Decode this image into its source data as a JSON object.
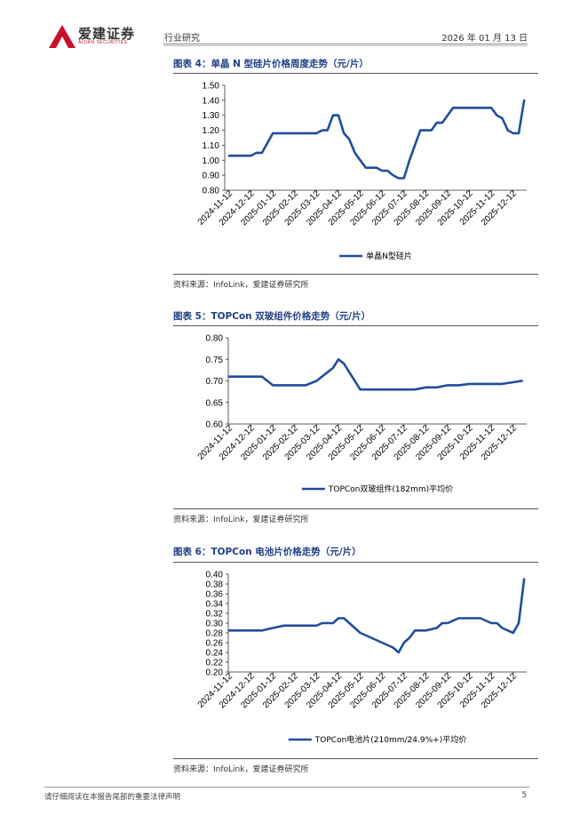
{
  "header": {
    "company": "爱建证券",
    "company_en": "AIJIAN SECURITIES",
    "category": "行业研究",
    "date": "2026 年 01 月 13 日"
  },
  "figures": [
    {
      "title": "图表 4：单晶 N 型硅片价格周度走势（元/片）",
      "source": "资料来源：InfoLink，爱建证券研究所"
    },
    {
      "title": "图表 5：TOPCon 双玻组件价格走势（元/片）",
      "source": "资料来源：InfoLink，爱建证券研究所"
    },
    {
      "title": "图表 6：TOPCon 电池片价格走势（元/片）",
      "source": "资料来源：InfoLink，爱建证券研究所"
    }
  ],
  "chart_data": [
    {
      "type": "line",
      "categories": [
        "2024-11-12",
        "2024-12-12",
        "2025-01-12",
        "2025-02-12",
        "2025-03-12",
        "2025-04-12",
        "2025-05-12",
        "2025-06-12",
        "2025-07-12",
        "2025-08-12",
        "2025-09-12",
        "2025-10-12",
        "2025-11-12",
        "2025-12-12"
      ],
      "yticks": [
        "1.50",
        "1.40",
        "1.30",
        "1.20",
        "1.10",
        "1.00",
        "0.90",
        "0.80"
      ],
      "ylim": [
        0.8,
        1.5
      ],
      "series": [
        {
          "name": "单晶N型硅片",
          "x": [
            0,
            0.5,
            1,
            1.25,
            1.5,
            2,
            2.5,
            3,
            3.5,
            4,
            4.25,
            4.5,
            4.75,
            5,
            5.25,
            5.5,
            5.75,
            6,
            6.25,
            6.5,
            6.75,
            7,
            7.25,
            7.5,
            7.75,
            8,
            8.25,
            8.5,
            8.75,
            9,
            9.25,
            9.5,
            9.75,
            10,
            10.25,
            10.5,
            10.75,
            11,
            11.25,
            11.5,
            11.75,
            12,
            12.25,
            12.5,
            12.75,
            13,
            13.25,
            13.5
          ],
          "values": [
            1.03,
            1.03,
            1.03,
            1.05,
            1.05,
            1.18,
            1.18,
            1.18,
            1.18,
            1.18,
            1.2,
            1.2,
            1.3,
            1.3,
            1.18,
            1.14,
            1.05,
            1.0,
            0.95,
            0.95,
            0.95,
            0.93,
            0.93,
            0.9,
            0.88,
            0.88,
            1.0,
            1.1,
            1.2,
            1.2,
            1.2,
            1.25,
            1.25,
            1.3,
            1.35,
            1.35,
            1.35,
            1.35,
            1.35,
            1.35,
            1.35,
            1.35,
            1.3,
            1.28,
            1.2,
            1.18,
            1.18,
            1.4
          ]
        }
      ]
    },
    {
      "type": "line",
      "categories": [
        "2024-11-12",
        "2024-12-12",
        "2025-01-12",
        "2025-02-12",
        "2025-03-12",
        "2025-04-12",
        "2025-05-12",
        "2025-06-12",
        "2025-07-12",
        "2025-08-12",
        "2025-09-12",
        "2025-10-12",
        "2025-11-12",
        "2025-12-12"
      ],
      "yticks": [
        "0.80",
        "0.75",
        "0.70",
        "0.65",
        "0.60"
      ],
      "ylim": [
        0.6,
        0.8
      ],
      "series": [
        {
          "name": "TOPCon双玻组件(182mm)平均价",
          "x": [
            0,
            0.5,
            1,
            1.5,
            2,
            2.5,
            3,
            3.5,
            4,
            4.5,
            4.75,
            5,
            5.25,
            5.5,
            6,
            6.5,
            7,
            7.5,
            8,
            8.5,
            9,
            9.5,
            10,
            10.5,
            11,
            11.5,
            12,
            12.5,
            13,
            13.4
          ],
          "values": [
            0.71,
            0.71,
            0.71,
            0.71,
            0.69,
            0.69,
            0.69,
            0.69,
            0.7,
            0.72,
            0.73,
            0.75,
            0.74,
            0.72,
            0.68,
            0.68,
            0.68,
            0.68,
            0.68,
            0.68,
            0.685,
            0.685,
            0.69,
            0.69,
            0.693,
            0.693,
            0.693,
            0.693,
            0.697,
            0.7
          ]
        }
      ]
    },
    {
      "type": "line",
      "categories": [
        "2024-11-12",
        "2024-12-12",
        "2025-01-12",
        "2025-02-12",
        "2025-03-12",
        "2025-04-12",
        "2025-05-12",
        "2025-06-12",
        "2025-07-12",
        "2025-08-12",
        "2025-09-12",
        "2025-10-12",
        "2025-11-12",
        "2025-12-12"
      ],
      "yticks": [
        "0.40",
        "0.38",
        "0.36",
        "0.34",
        "0.32",
        "0.30",
        "0.28",
        "0.26",
        "0.24",
        "0.22",
        "0.20"
      ],
      "ylim": [
        0.2,
        0.4
      ],
      "series": [
        {
          "name": "TOPCon电池片(210mm/24.9%+)平均价",
          "x": [
            0,
            0.5,
            1,
            1.5,
            2,
            2.5,
            3,
            3.5,
            4,
            4.25,
            4.5,
            4.75,
            5,
            5.25,
            5.5,
            6,
            6.5,
            7,
            7.5,
            7.75,
            8,
            8.25,
            8.5,
            9,
            9.5,
            9.75,
            10,
            10.5,
            11,
            11.5,
            12,
            12.25,
            12.5,
            12.75,
            13,
            13.25,
            13.5
          ],
          "values": [
            0.285,
            0.285,
            0.285,
            0.285,
            0.29,
            0.295,
            0.295,
            0.295,
            0.295,
            0.3,
            0.3,
            0.3,
            0.31,
            0.31,
            0.3,
            0.28,
            0.27,
            0.26,
            0.25,
            0.24,
            0.26,
            0.27,
            0.285,
            0.285,
            0.29,
            0.3,
            0.3,
            0.31,
            0.31,
            0.31,
            0.3,
            0.3,
            0.29,
            0.285,
            0.28,
            0.3,
            0.39
          ]
        }
      ]
    }
  ],
  "footer": {
    "disclaimer": "请仔细阅读在本报告尾部的重要法律声明",
    "page": "5"
  },
  "colors": {
    "line": "#1f4e9c",
    "title": "#1f3f86",
    "logo": "#c8102e"
  }
}
